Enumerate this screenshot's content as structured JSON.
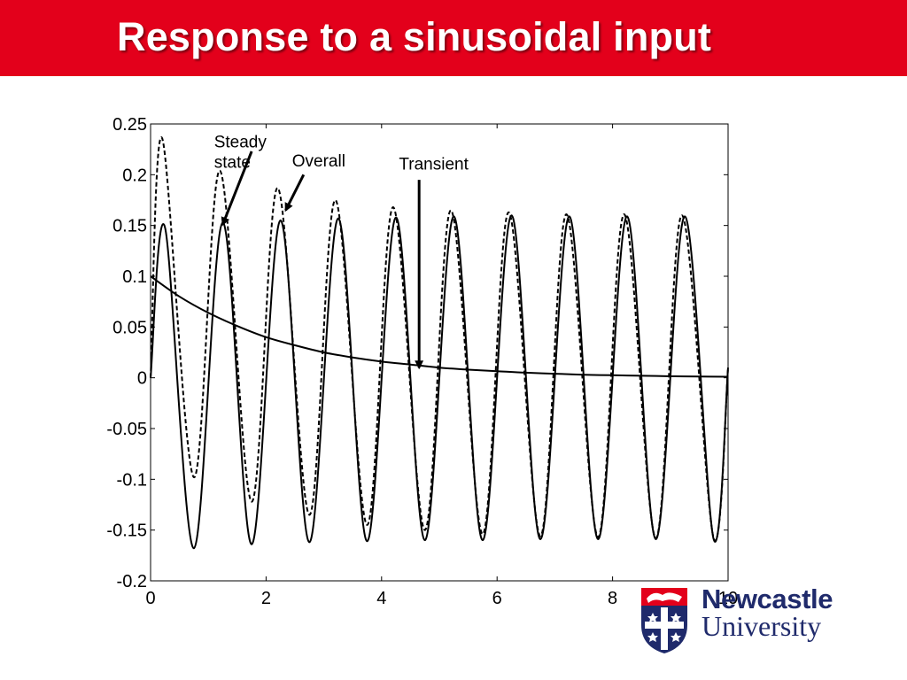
{
  "slide": {
    "title": "Response to a sinusoidal input",
    "title_bar_color": "#e3001b",
    "title_text_color": "#ffffff"
  },
  "logo": {
    "line1": "Newcastle",
    "line2": "University",
    "text_color": "#1f2a6b",
    "accent_color": "#e3001b"
  },
  "chart_data": {
    "type": "line",
    "title": "",
    "xlabel": "",
    "ylabel": "",
    "xlim": [
      0,
      10
    ],
    "ylim": [
      -0.2,
      0.25
    ],
    "xticks": [
      0,
      2,
      4,
      6,
      8,
      10
    ],
    "yticks": [
      -0.2,
      -0.15,
      -0.1,
      -0.05,
      0,
      0.05,
      0.1,
      0.15,
      0.2,
      0.25
    ],
    "grid": false,
    "legend": "none",
    "series": [
      {
        "style": "solid",
        "x": [
          0,
          0.25,
          0.75,
          1.25,
          1.75,
          2.25,
          2.75,
          3.25,
          3.75,
          4.25,
          4.75,
          5.25,
          5.75,
          6.25,
          6.75,
          7.25,
          7.75,
          8.25,
          8.75,
          9.25,
          9.75,
          10
        ],
        "y": [
          0,
          0.148,
          -0.168,
          0.153,
          -0.164,
          0.155,
          -0.162,
          0.157,
          -0.161,
          0.158,
          -0.16,
          0.159,
          -0.16,
          0.16,
          -0.159,
          0.159,
          -0.159,
          0.159,
          -0.159,
          0.159,
          -0.159,
          0.01
        ]
      },
      {
        "style": "dashed",
        "x": [
          0,
          0.2,
          0.75,
          1.2,
          1.75,
          2.2,
          2.75,
          3.2,
          3.75,
          4.2,
          4.75,
          5.2,
          5.75,
          6.2,
          6.75,
          7.2,
          7.75,
          8.2,
          8.75,
          9.2,
          9.75,
          10
        ],
        "y": [
          0,
          0.236,
          -0.098,
          0.204,
          -0.122,
          0.187,
          -0.135,
          0.175,
          -0.145,
          0.168,
          -0.15,
          0.165,
          -0.154,
          0.163,
          -0.156,
          0.161,
          -0.157,
          0.161,
          -0.158,
          0.16,
          -0.158,
          0.01
        ]
      },
      {
        "style": "solid",
        "x": [
          0,
          0.5,
          1,
          1.5,
          2,
          2.5,
          3,
          3.5,
          4,
          4.5,
          5,
          5.5,
          6,
          6.5,
          7,
          7.5,
          8,
          8.5,
          9,
          9.5,
          10
        ],
        "y": [
          0.1,
          0.08,
          0.064,
          0.051,
          0.04,
          0.032,
          0.025,
          0.02,
          0.016,
          0.013,
          0.01,
          0.008,
          0.0065,
          0.005,
          0.004,
          0.003,
          0.0025,
          0.002,
          0.0015,
          0.0012,
          0.001
        ]
      }
    ],
    "annotations": [
      {
        "lines": [
          "Steady",
          "state"
        ],
        "text_x": 1.1,
        "text_y": 0.227,
        "arrow_from": [
          1.75,
          0.223
        ],
        "arrow_to": [
          1.25,
          0.151
        ]
      },
      {
        "lines": [
          "Overall"
        ],
        "text_x": 2.45,
        "text_y": 0.208,
        "arrow_from": [
          2.65,
          0.2
        ],
        "arrow_to": [
          2.34,
          0.165
        ]
      },
      {
        "lines": [
          "Transient"
        ],
        "text_x": 4.3,
        "text_y": 0.205,
        "arrow_from": [
          4.65,
          0.195
        ],
        "arrow_to": [
          4.65,
          0.01
        ]
      }
    ]
  }
}
